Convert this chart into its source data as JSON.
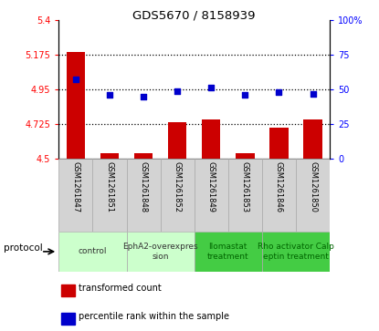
{
  "title": "GDS5670 / 8158939",
  "samples": [
    "GSM1261847",
    "GSM1261851",
    "GSM1261848",
    "GSM1261852",
    "GSM1261849",
    "GSM1261853",
    "GSM1261846",
    "GSM1261850"
  ],
  "bar_values": [
    5.19,
    4.535,
    4.535,
    4.74,
    4.755,
    4.535,
    4.7,
    4.755
  ],
  "dot_pct": [
    57,
    46,
    45,
    49,
    51,
    46,
    48,
    47
  ],
  "ylim_left": [
    4.5,
    5.4
  ],
  "ylim_right": [
    0,
    100
  ],
  "yticks_left": [
    4.5,
    4.725,
    4.95,
    5.175,
    5.4
  ],
  "yticks_right": [
    0,
    25,
    50,
    75,
    100
  ],
  "ytick_labels_left": [
    "4.5",
    "4.725",
    "4.95",
    "5.175",
    "5.4"
  ],
  "ytick_labels_right": [
    "0",
    "25",
    "50",
    "75",
    "100%"
  ],
  "hlines": [
    4.725,
    4.95,
    5.175
  ],
  "bar_color": "#cc0000",
  "dot_color": "#0000cc",
  "bar_bottom": 4.5,
  "protocols": [
    {
      "label": "control",
      "start": 0,
      "end": 2,
      "color": "#ccffcc",
      "textcolor": "#333333"
    },
    {
      "label": "EphA2-overexpres\nsion",
      "start": 2,
      "end": 4,
      "color": "#ccffcc",
      "textcolor": "#333333"
    },
    {
      "label": "Ilomastat\ntreatment",
      "start": 4,
      "end": 6,
      "color": "#44cc44",
      "textcolor": "#006600"
    },
    {
      "label": "Rho activator Calp\neptin treatment",
      "start": 6,
      "end": 8,
      "color": "#44cc44",
      "textcolor": "#006600"
    }
  ],
  "legend_bar_label": "transformed count",
  "legend_dot_label": "percentile rank within the sample",
  "protocol_label": "protocol",
  "bg_color": "#ffffff"
}
